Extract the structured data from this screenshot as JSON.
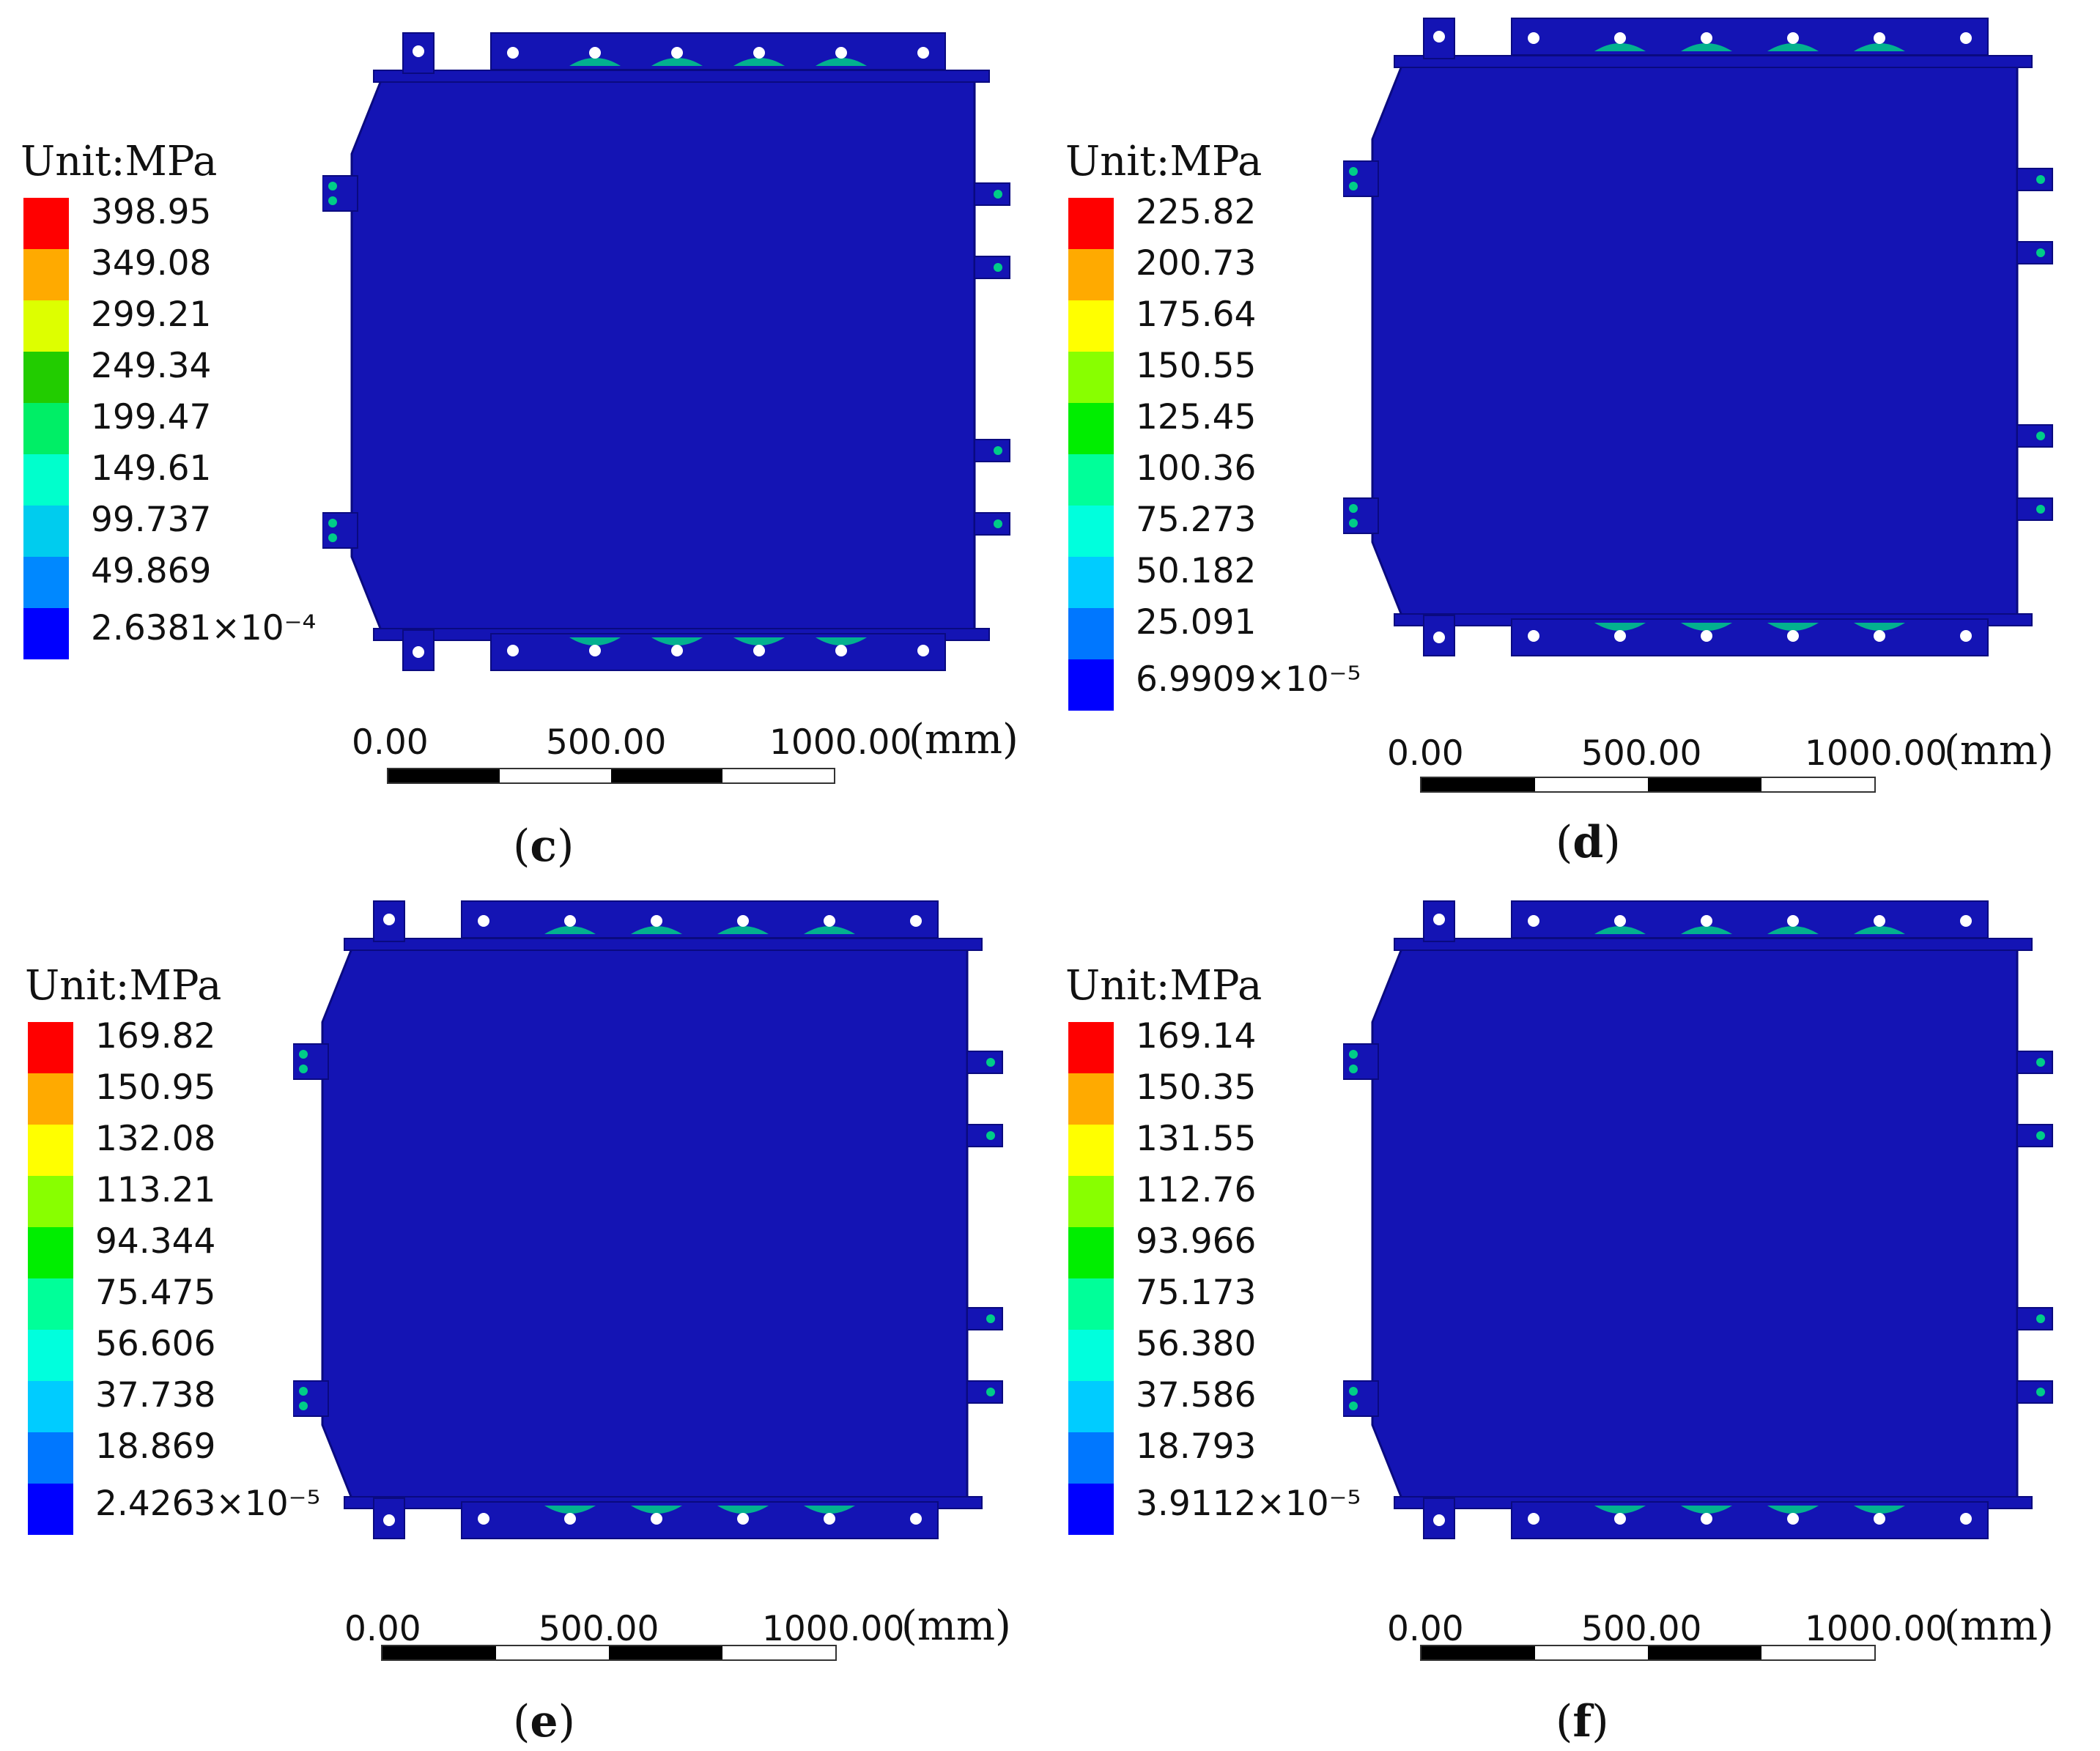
{
  "panels": [
    {
      "id": "c",
      "caption_letter": "c",
      "unit_label": "Unit:MPa",
      "legend_ticks": [
        "398.95",
        "349.08",
        "299.21",
        "249.34",
        "199.47",
        "149.61",
        "99.737",
        "49.869"
      ],
      "legend_min": "2.6381×10⁻⁴",
      "legend_colors": [
        "#ff0000",
        "#ffaa00",
        "#ddff00",
        "#22cc00",
        "#00ee66",
        "#00ffcc",
        "#00ccee",
        "#0088ff"
      ],
      "scale_labels": [
        "0.00",
        "500.00",
        "1000.00"
      ],
      "scale_unit": "(mm)"
    },
    {
      "id": "d",
      "caption_letter": "d",
      "unit_label": "Unit:MPa",
      "legend_ticks": [
        "225.82",
        "200.73",
        "175.64",
        "150.55",
        "125.45",
        "100.36",
        "75.273",
        "50.182",
        "25.091"
      ],
      "legend_min": "6.9909×10⁻⁵",
      "legend_colors": [
        "#ff0000",
        "#ffaa00",
        "#ffff00",
        "#88ff00",
        "#00ee00",
        "#00ff99",
        "#00ffdd",
        "#00ccff",
        "#0077ff"
      ],
      "scale_labels": [
        "0.00",
        "500.00",
        "1000.00"
      ],
      "scale_unit": "(mm)"
    },
    {
      "id": "e",
      "caption_letter": "e",
      "unit_label": "Unit:MPa",
      "legend_ticks": [
        "169.82",
        "150.95",
        "132.08",
        "113.21",
        "94.344",
        "75.475",
        "56.606",
        "37.738",
        "18.869"
      ],
      "legend_min": "2.4263×10⁻⁵",
      "legend_colors": [
        "#ff0000",
        "#ffaa00",
        "#ffff00",
        "#88ff00",
        "#00ee00",
        "#00ff99",
        "#00ffdd",
        "#00ccff",
        "#0077ff"
      ],
      "scale_labels": [
        "0.00",
        "500.00",
        "1000.00"
      ],
      "scale_unit": "(mm)"
    },
    {
      "id": "f",
      "caption_letter": "f",
      "unit_label": "Unit:MPa",
      "legend_ticks": [
        "169.14",
        "150.35",
        "131.55",
        "112.76",
        "93.966",
        "75.173",
        "56.380",
        "37.586",
        "18.793"
      ],
      "legend_min": "3.9112×10⁻⁵",
      "legend_colors": [
        "#ff0000",
        "#ffaa00",
        "#ffff00",
        "#88ff00",
        "#00ee00",
        "#00ff99",
        "#00ffdd",
        "#00ccff",
        "#0077ff"
      ],
      "scale_labels": [
        "0.00",
        "500.00",
        "1000.00"
      ],
      "scale_unit": "(mm)"
    }
  ],
  "colors": {
    "plate": "#1414b4",
    "plate_edge": "#0a0a80",
    "lowest": "#0000ff",
    "hotspot": "#00cc88",
    "bolt": "#ffffff"
  }
}
